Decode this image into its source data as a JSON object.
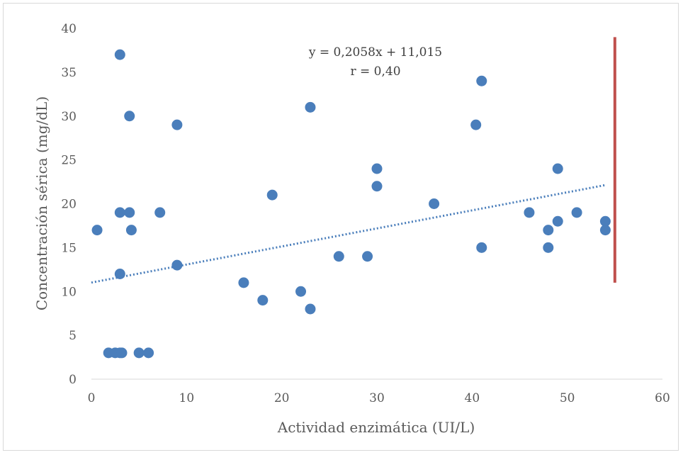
{
  "chart_data": {
    "type": "scatter",
    "title": "",
    "xlabel": "Actividad enzimática (UI/L)",
    "ylabel": "Concentración sérica (mg/dL)",
    "xlim": [
      0,
      60
    ],
    "ylim": [
      0,
      40
    ],
    "x_ticks": [
      "0",
      "10",
      "20",
      "30",
      "40",
      "50",
      "60"
    ],
    "y_ticks": [
      "0",
      "5",
      "10",
      "15",
      "20",
      "25",
      "30",
      "35",
      "40"
    ],
    "grid": false,
    "legend": "none",
    "series": [
      {
        "marker_color": "#4a7ebb",
        "points": [
          [
            0.6,
            17
          ],
          [
            1.8,
            3
          ],
          [
            2.5,
            3
          ],
          [
            3.0,
            3
          ],
          [
            3.2,
            3
          ],
          [
            3.0,
            37
          ],
          [
            3.0,
            19
          ],
          [
            3.0,
            12
          ],
          [
            4.0,
            30
          ],
          [
            4.0,
            19
          ],
          [
            4.2,
            17
          ],
          [
            5.0,
            3
          ],
          [
            6.0,
            3
          ],
          [
            7.2,
            19
          ],
          [
            9.0,
            29
          ],
          [
            9.0,
            13
          ],
          [
            16,
            11
          ],
          [
            18,
            9
          ],
          [
            19,
            21
          ],
          [
            22,
            10
          ],
          [
            23,
            31
          ],
          [
            23,
            8
          ],
          [
            26,
            14
          ],
          [
            29,
            14
          ],
          [
            30,
            24
          ],
          [
            30,
            22
          ],
          [
            36,
            20
          ],
          [
            40.4,
            29
          ],
          [
            41,
            34
          ],
          [
            41,
            15
          ],
          [
            46,
            19
          ],
          [
            48,
            17
          ],
          [
            48,
            15
          ],
          [
            49,
            24
          ],
          [
            49,
            18
          ],
          [
            51,
            19
          ],
          [
            54,
            18
          ],
          [
            54,
            17
          ]
        ]
      }
    ],
    "trendline": {
      "style": "dotted",
      "color": "#4a7ebb",
      "slope": 0.2058,
      "intercept": 11.015,
      "x_range": [
        0,
        54
      ]
    },
    "reference_line": {
      "color": "#c0504d",
      "x": 55,
      "y_range": [
        11,
        39
      ]
    },
    "annotations": {
      "equation": "y = 0,2058x + 11,015",
      "correlation": "r = 0,40"
    }
  }
}
